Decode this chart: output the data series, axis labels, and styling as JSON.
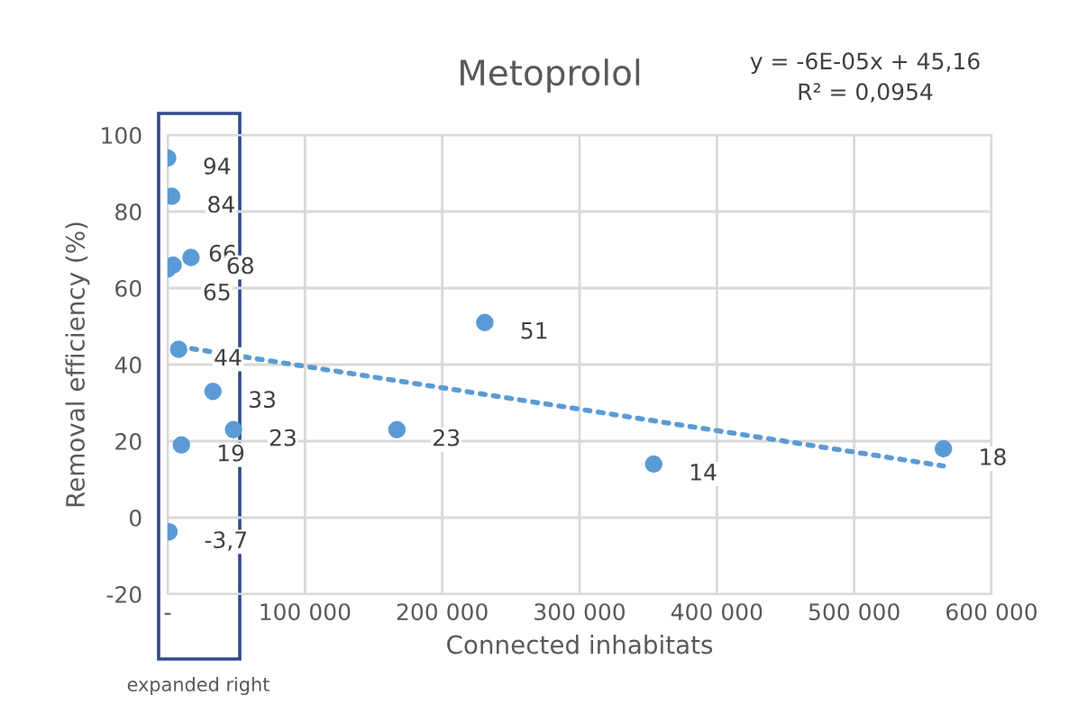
{
  "chart_data": {
    "type": "scatter",
    "title": "Metoprolol",
    "xlabel": "Connected inhabitats",
    "ylabel": "Removal efficiency (%)",
    "annotations": [
      "y = -6E-05x + 45,16",
      "R² = 0,0954",
      "expanded right"
    ],
    "xlim": [
      0,
      600000
    ],
    "xticks": [
      {
        "value": 0,
        "label": "-"
      },
      {
        "value": 100000,
        "label": "100 000"
      },
      {
        "value": 200000,
        "label": "200 000"
      },
      {
        "value": 300000,
        "label": "300 000"
      },
      {
        "value": 400000,
        "label": "400 000"
      },
      {
        "value": 500000,
        "label": "500 000"
      },
      {
        "value": 600000,
        "label": "600 000"
      }
    ],
    "ylim": [
      -20,
      100
    ],
    "yticks": [
      -20,
      0,
      20,
      40,
      60,
      80,
      100
    ],
    "grid": true,
    "legend": false,
    "series": [
      {
        "type": "scatter",
        "color": "#5b9bd5",
        "marker": "circle",
        "x": [
          0,
          3000,
          0,
          4000,
          17000,
          8000,
          33000,
          48000,
          10000,
          1000,
          231000,
          167000,
          354000,
          565000
        ],
        "values": [
          94,
          84,
          65,
          66,
          68,
          44,
          33,
          23,
          19,
          -3.7,
          51,
          23,
          14,
          18
        ],
        "value_labels": [
          "94",
          "84",
          "65",
          "66",
          "68",
          "44",
          "33",
          "23",
          "19",
          "-3,7",
          "51",
          "23",
          "14",
          "18"
        ]
      },
      {
        "type": "line",
        "color": "#5b9bd5",
        "line_style": "dotted",
        "marker": "none",
        "x": [
          8000,
          565000
        ],
        "values": [
          44.7,
          13.5
        ]
      }
    ]
  }
}
